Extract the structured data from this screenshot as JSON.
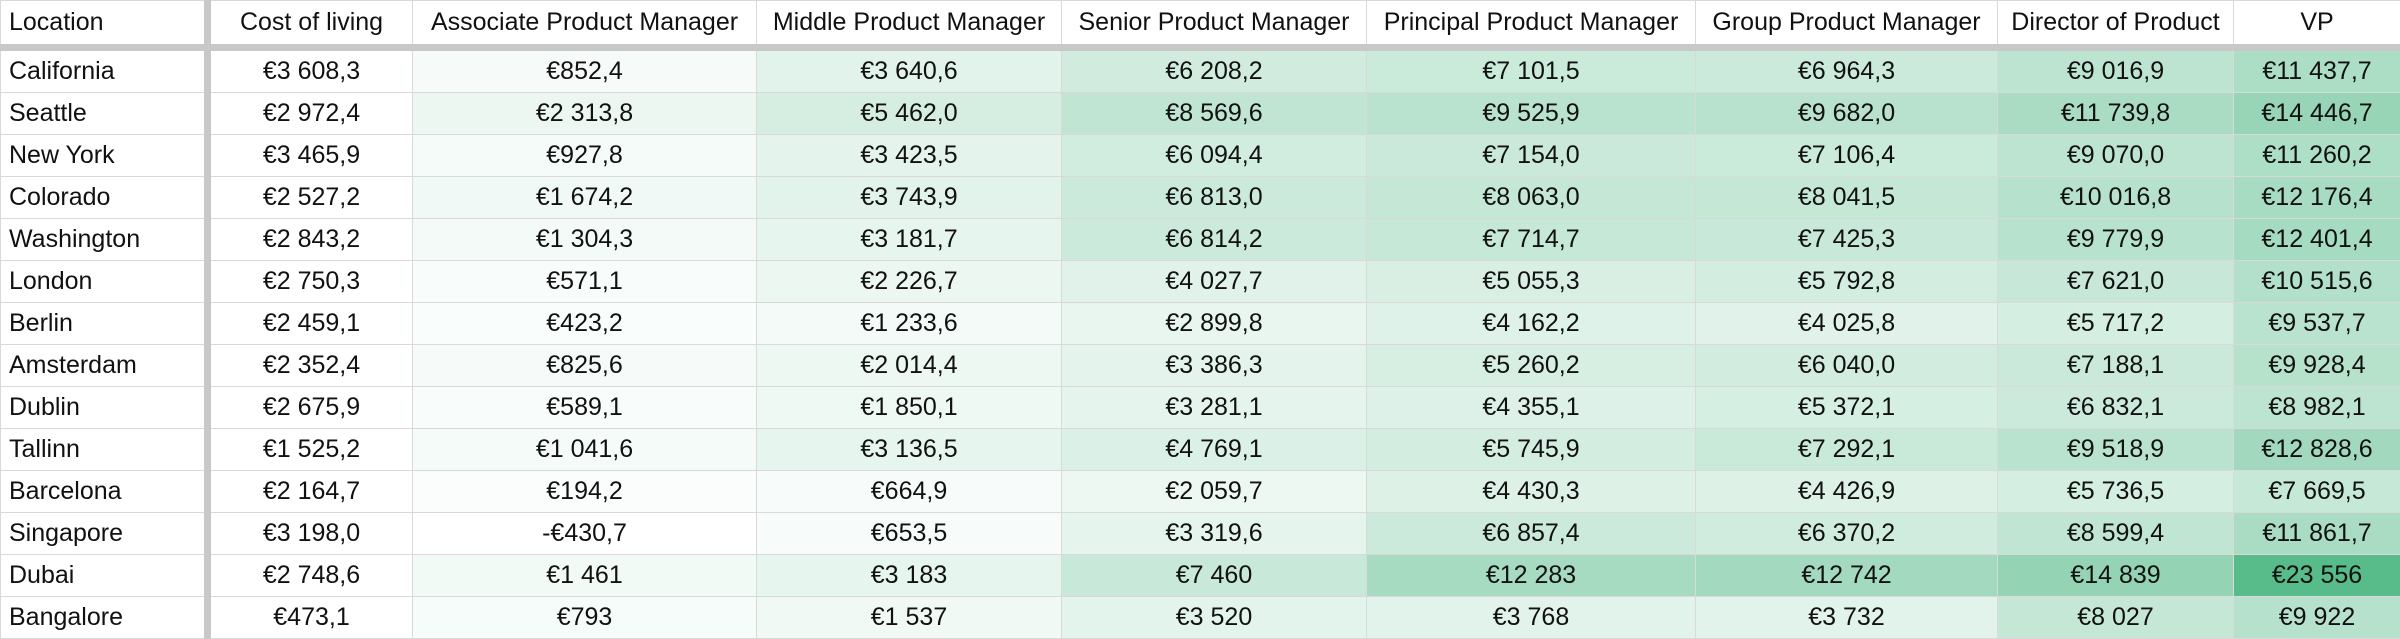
{
  "sheet": {
    "headers": [
      "Location",
      "Cost of living",
      "Associate Product Manager",
      "Middle Product Manager",
      "Senior Product Manager",
      "Principal Product Manager",
      "Group Product Manager",
      "Director of Product",
      "VP"
    ],
    "rows": [
      [
        "California",
        "€3 608,3",
        "€852,4",
        "€3 640,6",
        "€6 208,2",
        "€7 101,5",
        "€6 964,3",
        "€9 016,9",
        "€11 437,7"
      ],
      [
        "Seattle",
        "€2 972,4",
        "€2 313,8",
        "€5 462,0",
        "€8 569,6",
        "€9 525,9",
        "€9 682,0",
        "€11 739,8",
        "€14 446,7"
      ],
      [
        "New York",
        "€3 465,9",
        "€927,8",
        "€3 423,5",
        "€6 094,4",
        "€7 154,0",
        "€7 106,4",
        "€9 070,0",
        "€11 260,2"
      ],
      [
        "Colorado",
        "€2 527,2",
        "€1 674,2",
        "€3 743,9",
        "€6 813,0",
        "€8 063,0",
        "€8 041,5",
        "€10 016,8",
        "€12 176,4"
      ],
      [
        "Washington",
        "€2 843,2",
        "€1 304,3",
        "€3 181,7",
        "€6 814,2",
        "€7 714,7",
        "€7 425,3",
        "€9 779,9",
        "€12 401,4"
      ],
      [
        "London",
        "€2 750,3",
        "€571,1",
        "€2 226,7",
        "€4 027,7",
        "€5 055,3",
        "€5 792,8",
        "€7 621,0",
        "€10 515,6"
      ],
      [
        "Berlin",
        "€2 459,1",
        "€423,2",
        "€1 233,6",
        "€2 899,8",
        "€4 162,2",
        "€4 025,8",
        "€5 717,2",
        "€9 537,7"
      ],
      [
        "Amsterdam",
        "€2 352,4",
        "€825,6",
        "€2 014,4",
        "€3 386,3",
        "€5 260,2",
        "€6 040,0",
        "€7 188,1",
        "€9 928,4"
      ],
      [
        "Dublin",
        "€2 675,9",
        "€589,1",
        "€1 850,1",
        "€3 281,1",
        "€4 355,1",
        "€5 372,1",
        "€6 832,1",
        "€8 982,1"
      ],
      [
        "Tallinn",
        "€1 525,2",
        "€1 041,6",
        "€3 136,5",
        "€4 769,1",
        "€5 745,9",
        "€7 292,1",
        "€9 518,9",
        "€12 828,6"
      ],
      [
        "Barcelona",
        "€2 164,7",
        "€194,2",
        "€664,9",
        "€2 059,7",
        "€4 430,3",
        "€4 426,9",
        "€5 736,5",
        "€7 669,5"
      ],
      [
        "Singapore",
        "€3 198,0",
        "-€430,7",
        "€653,5",
        "€3 319,6",
        "€6 857,4",
        "€6 370,2",
        "€8 599,4",
        "€11 861,7"
      ],
      [
        "Dubai",
        "€2 748,6",
        "€1 461",
        "€3 183",
        "€7 460",
        "€12 283",
        "€12 742",
        "€14 839",
        "€23 556"
      ],
      [
        "Bangalore",
        "€473,1",
        "€793",
        "€1 537",
        "€3 520",
        "€3 768",
        "€3 732",
        "€8 027",
        "€9 922"
      ]
    ],
    "values": [
      [
        3608.3,
        852.4,
        3640.6,
        6208.2,
        7101.5,
        6964.3,
        9016.9,
        11437.7
      ],
      [
        2972.4,
        2313.8,
        5462.0,
        8569.6,
        9525.9,
        9682.0,
        11739.8,
        14446.7
      ],
      [
        3465.9,
        927.8,
        3423.5,
        6094.4,
        7154.0,
        7106.4,
        9070.0,
        11260.2
      ],
      [
        2527.2,
        1674.2,
        3743.9,
        6813.0,
        8063.0,
        8041.5,
        10016.8,
        12176.4
      ],
      [
        2843.2,
        1304.3,
        3181.7,
        6814.2,
        7714.7,
        7425.3,
        9779.9,
        12401.4
      ],
      [
        2750.3,
        571.1,
        2226.7,
        4027.7,
        5055.3,
        5792.8,
        7621.0,
        10515.6
      ],
      [
        2459.1,
        423.2,
        1233.6,
        2899.8,
        4162.2,
        4025.8,
        5717.2,
        9537.7
      ],
      [
        2352.4,
        825.6,
        2014.4,
        3386.3,
        5260.2,
        6040.0,
        7188.1,
        9928.4
      ],
      [
        2675.9,
        589.1,
        1850.1,
        3281.1,
        4355.1,
        5372.1,
        6832.1,
        8982.1
      ],
      [
        1525.2,
        1041.6,
        3136.5,
        4769.1,
        5745.9,
        7292.1,
        9518.9,
        12828.6
      ],
      [
        2164.7,
        194.2,
        664.9,
        2059.7,
        4430.3,
        4426.9,
        5736.5,
        7669.5
      ],
      [
        3198.0,
        -430.7,
        653.5,
        3319.6,
        6857.4,
        6370.2,
        8599.4,
        11861.7
      ],
      [
        2748.6,
        1461,
        3183,
        7460,
        12283,
        12742,
        14839,
        23556
      ],
      [
        473.1,
        793,
        1537,
        3520,
        3768,
        3732,
        8027,
        9922
      ]
    ],
    "heatmap": {
      "min_color": "#ffffff",
      "max_color": "#57bb8a",
      "min_value": -430.7,
      "max_value": 23556
    }
  }
}
